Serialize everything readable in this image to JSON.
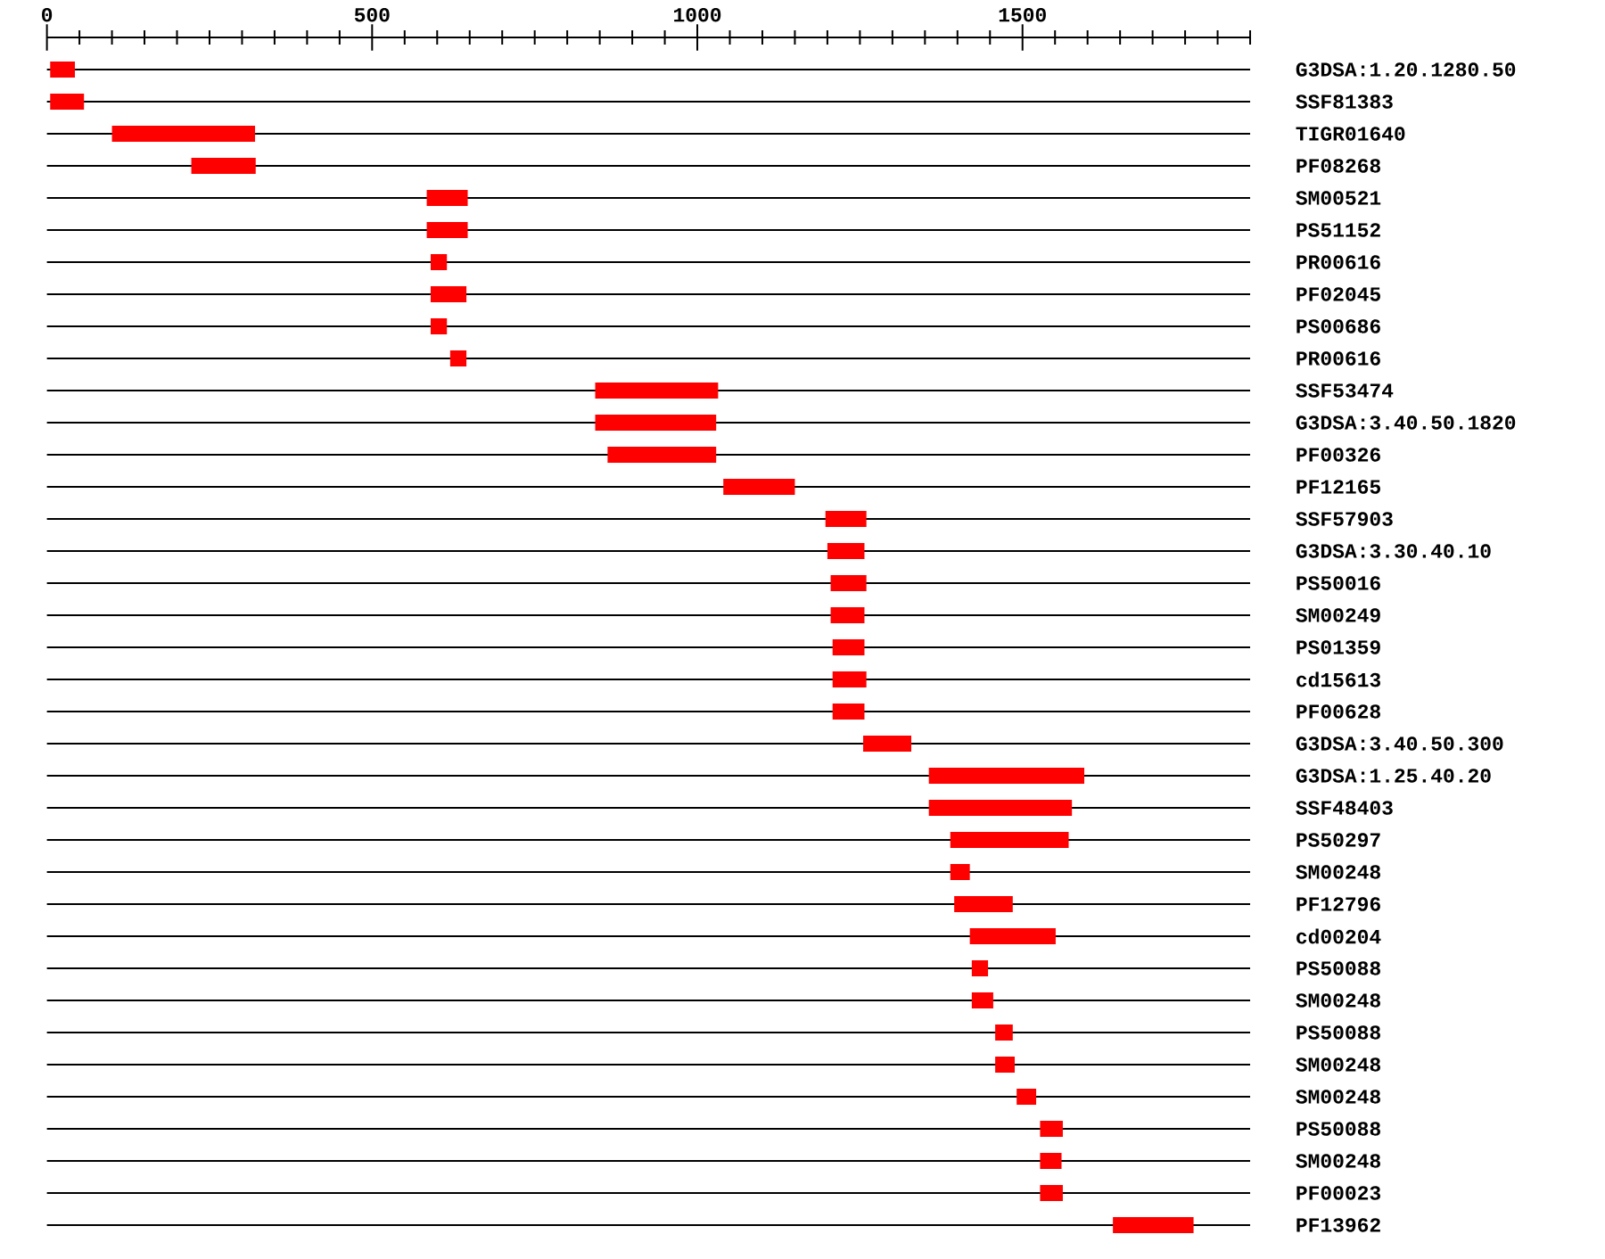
{
  "chart_data": {
    "type": "bar",
    "orientation": "horizontal",
    "color": "#ff0000",
    "grid": "y",
    "categories": [
      "G3DSA:1.20.1280.50",
      "SSF81383",
      "TIGR01640",
      "PF08268",
      "SM00521",
      "PS51152",
      "PR00616",
      "PF02045",
      "PS00686",
      "PR00616",
      "SSF53474",
      "G3DSA:3.40.50.1820",
      "PF00326",
      "PF12165",
      "SSF57903",
      "G3DSA:3.30.40.10",
      "PS50016",
      "SM00249",
      "PS01359",
      "cd15613",
      "PF00628",
      "G3DSA:3.40.50.300",
      "G3DSA:1.25.40.20",
      "SSF48403",
      "PS50297",
      "SM00248",
      "PF12796",
      "cd00204",
      "PS50088",
      "SM00248",
      "PS50088",
      "SM00248",
      "SM00248",
      "PS50088",
      "SM00248",
      "PF00023",
      "PF13962"
    ],
    "base": [
      5,
      5,
      100,
      222,
      584,
      584,
      590,
      590,
      590,
      620,
      843,
      843,
      862,
      1040,
      1197,
      1200,
      1205,
      1205,
      1208,
      1208,
      1208,
      1255,
      1356,
      1356,
      1389,
      1389,
      1395,
      1419,
      1422,
      1422,
      1458,
      1458,
      1491,
      1527,
      1527,
      1527,
      1639
    ],
    "values": [
      38,
      52,
      220,
      99,
      63,
      63,
      25,
      55,
      25,
      25,
      189,
      186,
      167,
      110,
      63,
      57,
      55,
      52,
      49,
      52,
      49,
      74,
      239,
      220,
      182,
      30,
      90,
      132,
      25,
      33,
      27,
      30,
      30,
      35,
      33,
      35,
      124
    ],
    "xlim": [
      0,
      1850
    ],
    "xticks": [
      0,
      {
        "value": 50,
        "label": null
      },
      {
        "value": 100,
        "label": null
      },
      {
        "value": 150,
        "label": null
      },
      {
        "value": 200,
        "label": null
      },
      {
        "value": 250,
        "label": null
      },
      {
        "value": 300,
        "label": null
      },
      {
        "value": 350,
        "label": null
      },
      {
        "value": 400,
        "label": null
      },
      {
        "value": 450,
        "label": null
      },
      500,
      {
        "value": 550,
        "label": null
      },
      {
        "value": 600,
        "label": null
      },
      {
        "value": 650,
        "label": null
      },
      {
        "value": 700,
        "label": null
      },
      {
        "value": 750,
        "label": null
      },
      {
        "value": 800,
        "label": null
      },
      {
        "value": 850,
        "label": null
      },
      {
        "value": 900,
        "label": null
      },
      {
        "value": 950,
        "label": null
      },
      1000,
      {
        "value": 1050,
        "label": null
      },
      {
        "value": 1100,
        "label": null
      },
      {
        "value": 1150,
        "label": null
      },
      {
        "value": 1200,
        "label": null
      },
      {
        "value": 1250,
        "label": null
      },
      {
        "value": 1300,
        "label": null
      },
      {
        "value": 1350,
        "label": null
      },
      {
        "value": 1400,
        "label": null
      },
      {
        "value": 1450,
        "label": null
      },
      1500,
      {
        "value": 1550,
        "label": null
      },
      {
        "value": 1600,
        "label": null
      },
      {
        "value": 1650,
        "label": null
      },
      {
        "value": 1700,
        "label": null
      },
      {
        "value": 1750,
        "label": null
      },
      {
        "value": 1800,
        "label": null
      },
      {
        "value": 1850,
        "label": null
      }
    ]
  }
}
